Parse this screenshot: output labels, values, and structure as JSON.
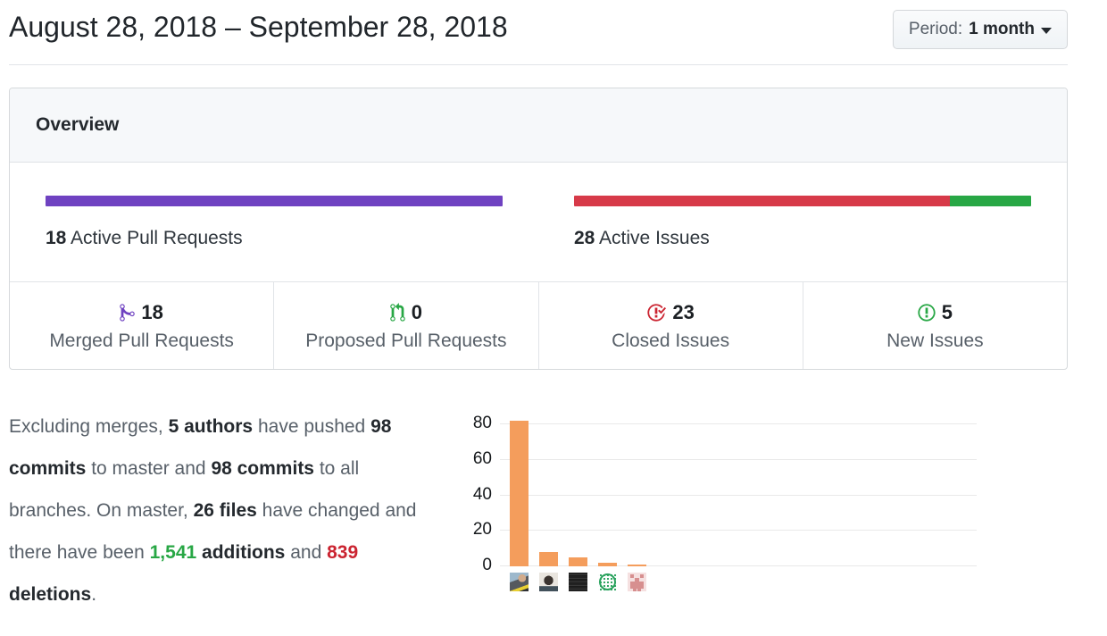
{
  "header": {
    "title": "August 28, 2018 – September 28, 2018",
    "period_label": "Period:",
    "period_value": "1 month"
  },
  "overview": {
    "title": "Overview",
    "pull_requests_meter": {
      "count": "18",
      "label": "Active Pull Requests",
      "merged": 18,
      "proposed": 0,
      "merged_color": "#6f42c1",
      "proposed_color": "#28a745"
    },
    "issues_meter": {
      "count": "28",
      "label": "Active Issues",
      "closed": 23,
      "new": 5,
      "closed_color": "#d73a49",
      "new_color": "#28a745"
    },
    "stats": [
      {
        "icon": "git-merge-icon",
        "count": "18",
        "label": "Merged Pull Requests",
        "color": "#6f42c1"
      },
      {
        "icon": "git-pull-request-icon",
        "count": "0",
        "label": "Proposed Pull Requests",
        "color": "#28a745"
      },
      {
        "icon": "issue-closed-icon",
        "count": "23",
        "label": "Closed Issues",
        "color": "#cb2431"
      },
      {
        "icon": "issue-opened-icon",
        "count": "5",
        "label": "New Issues",
        "color": "#28a745"
      }
    ]
  },
  "summary": {
    "segments": [
      {
        "text": "Excluding merges, ",
        "style": "normal"
      },
      {
        "text": "5 authors",
        "style": "bold"
      },
      {
        "text": " have pushed ",
        "style": "normal"
      },
      {
        "text": "98 commits",
        "style": "bold"
      },
      {
        "text": " to master and ",
        "style": "normal"
      },
      {
        "text": "98 commits",
        "style": "bold"
      },
      {
        "text": " to all branches. On master, ",
        "style": "normal"
      },
      {
        "text": "26 files",
        "style": "bold"
      },
      {
        "text": " have changed and there have been ",
        "style": "normal"
      },
      {
        "text": "1,541",
        "style": "bold-green"
      },
      {
        "text": " ",
        "style": "normal"
      },
      {
        "text": "additions",
        "style": "bold"
      },
      {
        "text": " and ",
        "style": "normal"
      },
      {
        "text": "839",
        "style": "bold-red"
      },
      {
        "text": " ",
        "style": "normal"
      },
      {
        "text": "deletions",
        "style": "bold"
      },
      {
        "text": ".",
        "style": "normal"
      }
    ]
  },
  "chart_data": {
    "type": "bar",
    "categories": [
      "author-1",
      "author-2",
      "author-3",
      "author-4",
      "author-5"
    ],
    "values": [
      82,
      8,
      5,
      2,
      1
    ],
    "yticks": [
      0,
      20,
      40,
      60,
      80
    ],
    "ylim": [
      0,
      88
    ],
    "grid": true,
    "bar_color": "#f49d5c",
    "avatars": [
      "photo-man-glasses-beard",
      "photo-person-dark-hair",
      "dark-terminal-screenshot",
      "green-network-logo",
      "pink-identicon"
    ]
  }
}
